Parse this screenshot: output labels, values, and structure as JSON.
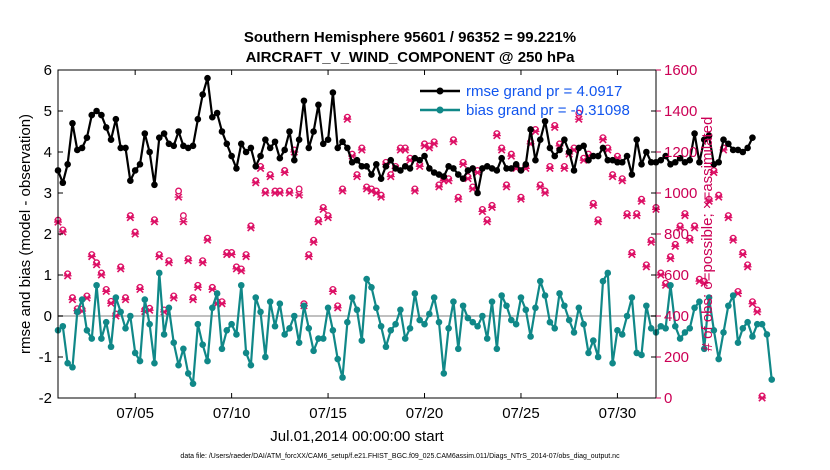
{
  "chart_data": {
    "type": "line",
    "title_line1": "Southern Hemisphere 95601 / 96352 = 99.221%",
    "title_line2": "AIRCRAFT_V_WIND_COMPONENT @ 250 hPa",
    "ylabel_left": "rmse and bias (model - observation)",
    "ylabel_right": "# of obs: o=possible; ×=assimilated",
    "xlabel": "Jul.01,2014 00:00:00 start",
    "footnote": "data file: /Users/raeder/DAI/ATM_forcXX/CAM6_setup/f.e21.FHIST_BGC.f09_025.CAM6assim.011/Diags_NTrS_2014-07/obs_diag_output.nc",
    "ylim_left": [
      -2,
      6
    ],
    "ylim_right": [
      0,
      1600
    ],
    "xlim_days": [
      1.0,
      32.0
    ],
    "yticks_left": [
      -2,
      -1,
      0,
      1,
      2,
      3,
      4,
      5,
      6
    ],
    "yticks_right": [
      0,
      200,
      400,
      600,
      800,
      1000,
      1200,
      1400,
      1600
    ],
    "xticks": [
      {
        "day": 5,
        "label": "07/05"
      },
      {
        "day": 10,
        "label": "07/10"
      },
      {
        "day": 15,
        "label": "07/15"
      },
      {
        "day": 20,
        "label": "07/20"
      },
      {
        "day": 25,
        "label": "07/25"
      },
      {
        "day": 30,
        "label": "07/30"
      }
    ],
    "x_start_day": 1.0,
    "x_step_days": 0.25,
    "series": [
      {
        "name": "rmse",
        "legend": "rmse grand pr = 4.0917",
        "color": "#000000",
        "axis": "left",
        "values": [
          3.55,
          3.25,
          3.7,
          4.7,
          4.05,
          4.1,
          4.35,
          4.9,
          5.0,
          4.9,
          4.6,
          4.3,
          4.8,
          4.1,
          4.1,
          3.3,
          3.55,
          3.7,
          4.45,
          4.0,
          3.2,
          4.35,
          4.45,
          4.2,
          4.15,
          4.5,
          4.15,
          4.1,
          4.15,
          4.8,
          5.4,
          5.8,
          4.85,
          4.95,
          4.5,
          4.2,
          3.9,
          3.6,
          4.2,
          4.0,
          4.1,
          3.65,
          3.9,
          4.3,
          4.1,
          4.25,
          3.85,
          4.05,
          4.5,
          3.8,
          4.3,
          5.25,
          4.1,
          4.5,
          5.15,
          4.2,
          4.3,
          5.45,
          4.1,
          4.25,
          4.1,
          3.75,
          3.8,
          3.65,
          3.65,
          3.45,
          3.7,
          3.35,
          3.65,
          3.8,
          3.6,
          3.55,
          3.65,
          3.6,
          3.85,
          3.8,
          3.9,
          3.6,
          3.5,
          3.45,
          3.4,
          3.65,
          3.6,
          3.45,
          3.35,
          3.55,
          3.6,
          3.0,
          3.6,
          3.65,
          3.6,
          3.55,
          3.85,
          3.6,
          3.6,
          3.7,
          3.55,
          3.7,
          4.55,
          3.8,
          4.3,
          4.75,
          4.1,
          3.9,
          4.05,
          4.3,
          4.0,
          3.55,
          4.1,
          4.15,
          3.8,
          3.9,
          3.9,
          4.1,
          3.8,
          3.8,
          3.75,
          3.75,
          3.9,
          3.45,
          4.3,
          3.7,
          4.0,
          3.75,
          3.75,
          3.8,
          3.9,
          3.7,
          3.75,
          3.85,
          3.75,
          3.8,
          4.45,
          3.75,
          4.3,
          4.4,
          3.7,
          3.75,
          4.3,
          4.2,
          4.05,
          4.05,
          4.0,
          4.1,
          4.35
        ],
        "label_series_note": "markers filled circles"
      },
      {
        "name": "bias",
        "legend": "bias grand pr = -0.31098",
        "color": "#108888",
        "axis": "left",
        "values": [
          -0.35,
          -0.25,
          -1.15,
          -1.25,
          0.1,
          0.4,
          -0.35,
          -0.55,
          0.75,
          -0.55,
          -0.15,
          -0.75,
          0.45,
          0.1,
          -0.3,
          0.0,
          -0.9,
          -1.1,
          0.4,
          -0.2,
          -1.15,
          1.05,
          -0.45,
          0.2,
          -0.65,
          -1.2,
          -0.8,
          -1.4,
          -1.65,
          -0.2,
          -0.7,
          -1.1,
          0.2,
          0.55,
          -0.8,
          -0.35,
          -0.2,
          -0.45,
          0.75,
          -0.9,
          -1.2,
          0.45,
          0.1,
          -1.0,
          0.35,
          -0.25,
          0.3,
          -0.45,
          -0.3,
          0.0,
          -0.65,
          0.25,
          -0.3,
          -0.85,
          -0.55,
          -0.55,
          0.2,
          -0.35,
          -1.05,
          -1.5,
          -0.15,
          0.45,
          0.15,
          -0.6,
          0.9,
          0.7,
          0.2,
          -0.25,
          -0.75,
          -0.35,
          -0.2,
          0.15,
          -0.55,
          -0.3,
          0.55,
          -0.1,
          -0.2,
          0.05,
          0.45,
          -0.15,
          -1.4,
          -0.3,
          0.35,
          -0.8,
          0.25,
          -0.05,
          -0.15,
          -0.25,
          0.0,
          -0.55,
          0.35,
          -0.8,
          0.5,
          0.25,
          -0.1,
          -0.2,
          0.45,
          0.15,
          -0.5,
          0.2,
          0.85,
          0.5,
          -0.15,
          -0.3,
          0.55,
          0.25,
          -0.1,
          -0.4,
          0.2,
          -0.2,
          -0.9,
          -0.6,
          -1.0,
          0.85,
          1.05,
          -1.15,
          -0.35,
          -0.45,
          0.0,
          0.45,
          -0.9,
          -0.95,
          0.25,
          -0.3,
          -0.4,
          -0.25,
          -0.3,
          0.75,
          -0.25,
          -0.55,
          -0.4,
          -0.3,
          0.2,
          0.35,
          -0.8,
          0.45,
          -0.35,
          -1.05,
          -0.4,
          0.25,
          0.5,
          -0.65,
          -0.3,
          -0.15,
          -0.5,
          -0.2,
          -0.2,
          -0.45,
          -1.55
        ]
      },
      {
        "name": "obs_possible",
        "legend": "o=possible",
        "color": "#dd1166",
        "axis": "right",
        "marker": "circle",
        "values": [
          858,
          810,
          596,
          480,
          426,
          424,
          488,
          690,
          650,
          600,
          520,
          462,
          400,
          630,
          480,
          880,
          800,
          530,
          422,
          428,
          860,
          690,
          420,
          660,
          488,
          1000,
          880,
          670,
          480,
          540,
          660,
          770,
          530,
          460,
          460,
          700,
          700,
          630,
          620,
          690,
          830,
          1050,
          1120,
          1000,
          1080,
          1000,
          1000,
          1100,
          1000,
          1200,
          1010,
          450,
          690,
          760,
          860,
          920,
          880,
          520,
          440,
          1010,
          1360,
          1180,
          1080,
          1210,
          1020,
          1010,
          1000,
          980,
          1140,
          1080,
          1120,
          1210,
          1210,
          1160,
          1010,
          1130,
          1230,
          1220,
          1240,
          1030,
          1060,
          1060,
          1250,
          970,
          1140,
          1070,
          1020,
          1100,
          910,
          860,
          930,
          1280,
          1210,
          1030,
          1180,
          1120,
          970,
          1120,
          1240,
          1300,
          1030,
          1000,
          1120,
          1320,
          1230,
          1120,
          1190,
          1210,
          1380,
          1160,
          1180,
          940,
          860,
          1260,
          1210,
          1080,
          1170,
          1060,
          890,
          700,
          890,
          960,
          640,
          760,
          920,
          600,
          550,
          680,
          740,
          830,
          890,
          770,
          830,
          570,
          560,
          960,
          1100,
          980,
          1210,
          880,
          770,
          510,
          700,
          640,
          460,
          420,
          0
        ]
      },
      {
        "name": "obs_assimilated",
        "legend": "×=assimilated",
        "color": "#dd1166",
        "axis": "right",
        "marker": "x",
        "values": [
          858,
          810,
          596,
          480,
          426,
          424,
          488,
          690,
          650,
          600,
          520,
          462,
          400,
          630,
          480,
          880,
          800,
          530,
          422,
          428,
          860,
          690,
          420,
          660,
          488,
          980,
          860,
          670,
          480,
          540,
          660,
          770,
          530,
          460,
          460,
          700,
          700,
          630,
          620,
          690,
          830,
          1050,
          1120,
          1000,
          1080,
          1000,
          1000,
          1100,
          1000,
          1200,
          990,
          450,
          690,
          760,
          860,
          920,
          880,
          520,
          440,
          1010,
          1360,
          1180,
          1080,
          1210,
          1020,
          1010,
          1000,
          980,
          1140,
          1080,
          1120,
          1210,
          1210,
          1160,
          1010,
          1130,
          1230,
          1220,
          1240,
          1030,
          1060,
          1060,
          1250,
          970,
          1140,
          1070,
          1020,
          1100,
          910,
          860,
          930,
          1280,
          1210,
          1030,
          1180,
          1120,
          970,
          1120,
          1240,
          1300,
          1030,
          1000,
          1120,
          1320,
          1230,
          1120,
          1190,
          1210,
          1360,
          1160,
          1180,
          940,
          860,
          1260,
          1210,
          1080,
          1170,
          1060,
          890,
          700,
          890,
          960,
          640,
          760,
          920,
          600,
          550,
          680,
          740,
          830,
          890,
          770,
          830,
          570,
          560,
          960,
          1100,
          980,
          1210,
          880,
          770,
          510,
          700,
          640,
          460,
          420,
          0
        ]
      }
    ]
  },
  "colors": {
    "rmse": "#000000",
    "bias": "#108888",
    "obs": "#dd1166",
    "right_axis": "#cc0055",
    "legend_text": "#1155ee",
    "zero_line": "#c0c0c0"
  }
}
